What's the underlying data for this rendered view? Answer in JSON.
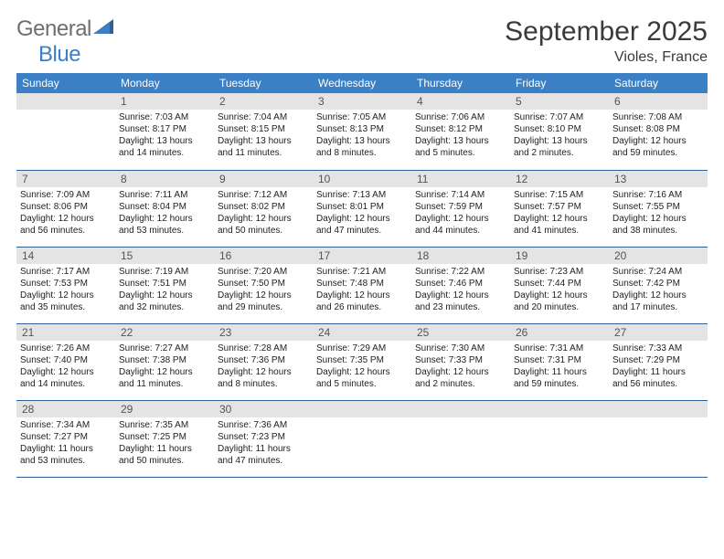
{
  "logo": {
    "general": "General",
    "blue": "Blue"
  },
  "title": "September 2025",
  "location": "Violes, France",
  "colors": {
    "header_bg": "#3b7fc4",
    "header_text": "#ffffff",
    "daynum_bg": "#e4e4e4",
    "border": "#2f5f93",
    "logo_gray": "#6f6f6f",
    "logo_blue": "#3b7fc4"
  },
  "weekdays": [
    "Sunday",
    "Monday",
    "Tuesday",
    "Wednesday",
    "Thursday",
    "Friday",
    "Saturday"
  ],
  "weeks": [
    [
      {
        "num": "",
        "lines": []
      },
      {
        "num": "1",
        "lines": [
          "Sunrise: 7:03 AM",
          "Sunset: 8:17 PM",
          "Daylight: 13 hours",
          "and 14 minutes."
        ]
      },
      {
        "num": "2",
        "lines": [
          "Sunrise: 7:04 AM",
          "Sunset: 8:15 PM",
          "Daylight: 13 hours",
          "and 11 minutes."
        ]
      },
      {
        "num": "3",
        "lines": [
          "Sunrise: 7:05 AM",
          "Sunset: 8:13 PM",
          "Daylight: 13 hours",
          "and 8 minutes."
        ]
      },
      {
        "num": "4",
        "lines": [
          "Sunrise: 7:06 AM",
          "Sunset: 8:12 PM",
          "Daylight: 13 hours",
          "and 5 minutes."
        ]
      },
      {
        "num": "5",
        "lines": [
          "Sunrise: 7:07 AM",
          "Sunset: 8:10 PM",
          "Daylight: 13 hours",
          "and 2 minutes."
        ]
      },
      {
        "num": "6",
        "lines": [
          "Sunrise: 7:08 AM",
          "Sunset: 8:08 PM",
          "Daylight: 12 hours",
          "and 59 minutes."
        ]
      }
    ],
    [
      {
        "num": "7",
        "lines": [
          "Sunrise: 7:09 AM",
          "Sunset: 8:06 PM",
          "Daylight: 12 hours",
          "and 56 minutes."
        ]
      },
      {
        "num": "8",
        "lines": [
          "Sunrise: 7:11 AM",
          "Sunset: 8:04 PM",
          "Daylight: 12 hours",
          "and 53 minutes."
        ]
      },
      {
        "num": "9",
        "lines": [
          "Sunrise: 7:12 AM",
          "Sunset: 8:02 PM",
          "Daylight: 12 hours",
          "and 50 minutes."
        ]
      },
      {
        "num": "10",
        "lines": [
          "Sunrise: 7:13 AM",
          "Sunset: 8:01 PM",
          "Daylight: 12 hours",
          "and 47 minutes."
        ]
      },
      {
        "num": "11",
        "lines": [
          "Sunrise: 7:14 AM",
          "Sunset: 7:59 PM",
          "Daylight: 12 hours",
          "and 44 minutes."
        ]
      },
      {
        "num": "12",
        "lines": [
          "Sunrise: 7:15 AM",
          "Sunset: 7:57 PM",
          "Daylight: 12 hours",
          "and 41 minutes."
        ]
      },
      {
        "num": "13",
        "lines": [
          "Sunrise: 7:16 AM",
          "Sunset: 7:55 PM",
          "Daylight: 12 hours",
          "and 38 minutes."
        ]
      }
    ],
    [
      {
        "num": "14",
        "lines": [
          "Sunrise: 7:17 AM",
          "Sunset: 7:53 PM",
          "Daylight: 12 hours",
          "and 35 minutes."
        ]
      },
      {
        "num": "15",
        "lines": [
          "Sunrise: 7:19 AM",
          "Sunset: 7:51 PM",
          "Daylight: 12 hours",
          "and 32 minutes."
        ]
      },
      {
        "num": "16",
        "lines": [
          "Sunrise: 7:20 AM",
          "Sunset: 7:50 PM",
          "Daylight: 12 hours",
          "and 29 minutes."
        ]
      },
      {
        "num": "17",
        "lines": [
          "Sunrise: 7:21 AM",
          "Sunset: 7:48 PM",
          "Daylight: 12 hours",
          "and 26 minutes."
        ]
      },
      {
        "num": "18",
        "lines": [
          "Sunrise: 7:22 AM",
          "Sunset: 7:46 PM",
          "Daylight: 12 hours",
          "and 23 minutes."
        ]
      },
      {
        "num": "19",
        "lines": [
          "Sunrise: 7:23 AM",
          "Sunset: 7:44 PM",
          "Daylight: 12 hours",
          "and 20 minutes."
        ]
      },
      {
        "num": "20",
        "lines": [
          "Sunrise: 7:24 AM",
          "Sunset: 7:42 PM",
          "Daylight: 12 hours",
          "and 17 minutes."
        ]
      }
    ],
    [
      {
        "num": "21",
        "lines": [
          "Sunrise: 7:26 AM",
          "Sunset: 7:40 PM",
          "Daylight: 12 hours",
          "and 14 minutes."
        ]
      },
      {
        "num": "22",
        "lines": [
          "Sunrise: 7:27 AM",
          "Sunset: 7:38 PM",
          "Daylight: 12 hours",
          "and 11 minutes."
        ]
      },
      {
        "num": "23",
        "lines": [
          "Sunrise: 7:28 AM",
          "Sunset: 7:36 PM",
          "Daylight: 12 hours",
          "and 8 minutes."
        ]
      },
      {
        "num": "24",
        "lines": [
          "Sunrise: 7:29 AM",
          "Sunset: 7:35 PM",
          "Daylight: 12 hours",
          "and 5 minutes."
        ]
      },
      {
        "num": "25",
        "lines": [
          "Sunrise: 7:30 AM",
          "Sunset: 7:33 PM",
          "Daylight: 12 hours",
          "and 2 minutes."
        ]
      },
      {
        "num": "26",
        "lines": [
          "Sunrise: 7:31 AM",
          "Sunset: 7:31 PM",
          "Daylight: 11 hours",
          "and 59 minutes."
        ]
      },
      {
        "num": "27",
        "lines": [
          "Sunrise: 7:33 AM",
          "Sunset: 7:29 PM",
          "Daylight: 11 hours",
          "and 56 minutes."
        ]
      }
    ],
    [
      {
        "num": "28",
        "lines": [
          "Sunrise: 7:34 AM",
          "Sunset: 7:27 PM",
          "Daylight: 11 hours",
          "and 53 minutes."
        ]
      },
      {
        "num": "29",
        "lines": [
          "Sunrise: 7:35 AM",
          "Sunset: 7:25 PM",
          "Daylight: 11 hours",
          "and 50 minutes."
        ]
      },
      {
        "num": "30",
        "lines": [
          "Sunrise: 7:36 AM",
          "Sunset: 7:23 PM",
          "Daylight: 11 hours",
          "and 47 minutes."
        ]
      },
      {
        "num": "",
        "lines": []
      },
      {
        "num": "",
        "lines": []
      },
      {
        "num": "",
        "lines": []
      },
      {
        "num": "",
        "lines": []
      }
    ]
  ]
}
